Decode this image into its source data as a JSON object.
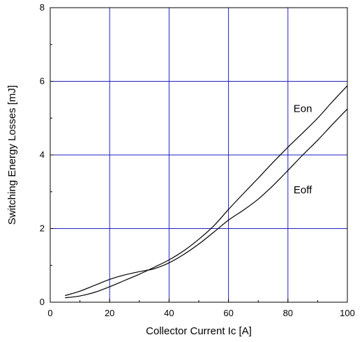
{
  "chart_data": {
    "type": "line",
    "title": "",
    "xlabel": "Collector Current Ic [A]",
    "ylabel": "Switching Energy Losses [mJ]",
    "xlim": [
      0,
      100
    ],
    "ylim": [
      0,
      8
    ],
    "x_ticks": [
      0,
      20,
      40,
      60,
      80,
      100
    ],
    "y_ticks": [
      0,
      2,
      4,
      6,
      8
    ],
    "grid": true,
    "grid_color": "#2020c0",
    "line_color": "#000000",
    "legend": "none",
    "series": [
      {
        "name": "Eon",
        "x": [
          5,
          10,
          15,
          20,
          25,
          30,
          35,
          40,
          45,
          50,
          55,
          60,
          65,
          70,
          75,
          80,
          85,
          90,
          95,
          100
        ],
        "y": [
          0.12,
          0.17,
          0.27,
          0.42,
          0.59,
          0.76,
          0.95,
          1.15,
          1.4,
          1.71,
          2.07,
          2.52,
          2.95,
          3.37,
          3.8,
          4.21,
          4.6,
          5.0,
          5.45,
          5.88
        ]
      },
      {
        "name": "Eoff",
        "x": [
          5,
          10,
          15,
          20,
          25,
          30,
          35,
          40,
          45,
          50,
          55,
          60,
          65,
          70,
          75,
          80,
          85,
          90,
          95,
          100
        ],
        "y": [
          0.18,
          0.3,
          0.46,
          0.62,
          0.74,
          0.83,
          0.91,
          1.07,
          1.3,
          1.58,
          1.9,
          2.23,
          2.5,
          2.8,
          3.17,
          3.58,
          4.0,
          4.4,
          4.83,
          5.25
        ]
      }
    ]
  }
}
